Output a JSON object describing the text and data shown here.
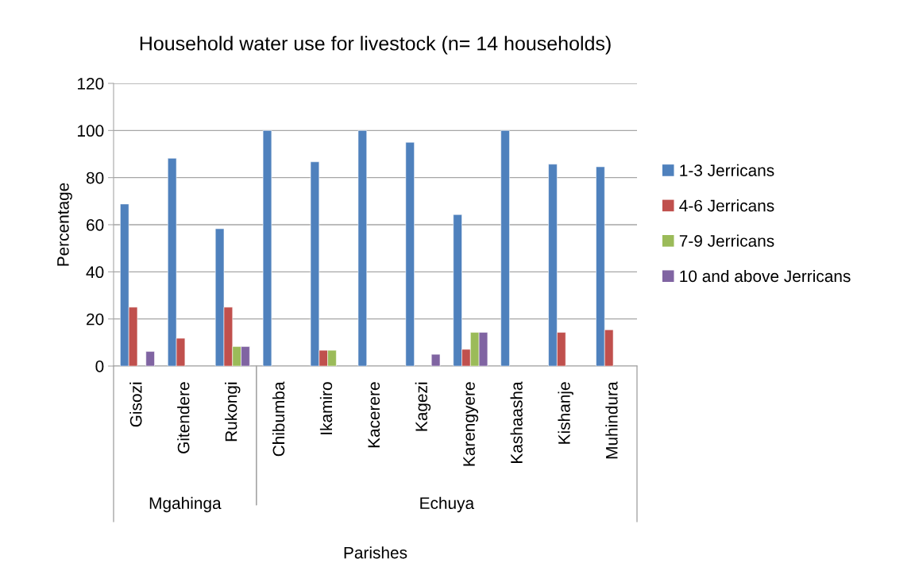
{
  "chart_data": {
    "type": "bar",
    "title": "Household water use for livestock (n= 14 households)",
    "xlabel": "Parishes",
    "ylabel": "Percentage",
    "categories": [
      "Gisozi",
      "Gitendere",
      "Rukongi",
      "Chibumba",
      "Ikamiro",
      "Kacerere",
      "Kagezi",
      "Karengyere",
      "Kashaasha",
      "Kishanje",
      "Muhindura"
    ],
    "series": [
      {
        "name": "1-3 Jerricans",
        "color": "#4f81bd",
        "values": [
          68.8,
          88.2,
          58.3,
          100,
          86.7,
          100,
          95,
          64.3,
          100,
          85.7,
          84.6
        ]
      },
      {
        "name": "4-6 Jerricans",
        "color": "#c0504d",
        "values": [
          25,
          11.8,
          25,
          null,
          6.7,
          null,
          null,
          7.1,
          null,
          14.3,
          15.4
        ]
      },
      {
        "name": "7-9 Jerricans",
        "color": "#9bbb59",
        "values": [
          null,
          null,
          8.3,
          null,
          6.7,
          null,
          null,
          14.3,
          null,
          null,
          null
        ]
      },
      {
        "name": "10 and above Jerricans",
        "color": "#8064a2",
        "values": [
          6.2,
          null,
          8.3,
          null,
          null,
          null,
          5,
          14.3,
          null,
          null,
          null
        ]
      }
    ],
    "annotations": [
      "Mgahinga",
      "Echuya"
    ],
    "ylim": [
      0,
      120
    ],
    "yticks": [
      0,
      20,
      40,
      60,
      80,
      100,
      120
    ],
    "grid": "y",
    "legend": "right"
  }
}
